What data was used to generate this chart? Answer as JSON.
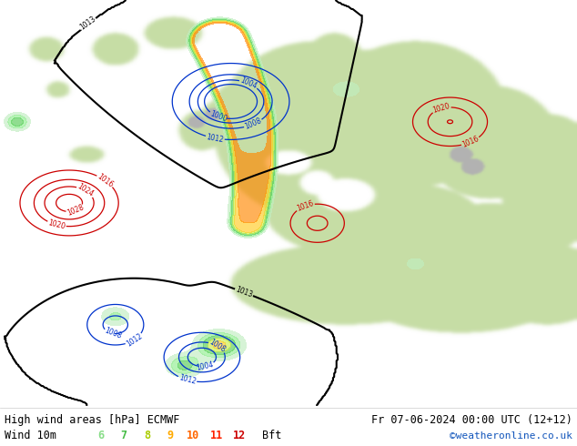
{
  "title_left": "High wind areas [hPa] ECMWF",
  "title_right": "Fr 07-06-2024 00:00 UTC (12+12)",
  "subtitle_left": "Wind 10m",
  "legend_values": [
    "6",
    "7",
    "8",
    "9",
    "10",
    "11",
    "12",
    "Bft"
  ],
  "legend_colors": [
    "#90ee90",
    "#55cc55",
    "#cccc00",
    "#ffaa00",
    "#ff6600",
    "#ff2200",
    "#cc0000"
  ],
  "watermark": "©weatheronline.co.uk",
  "bg_color": "#ffffff",
  "ocean_color": "#d8eef8",
  "land_color": "#c8ddb0",
  "figsize": [
    6.34,
    4.9
  ],
  "dpi": 100
}
